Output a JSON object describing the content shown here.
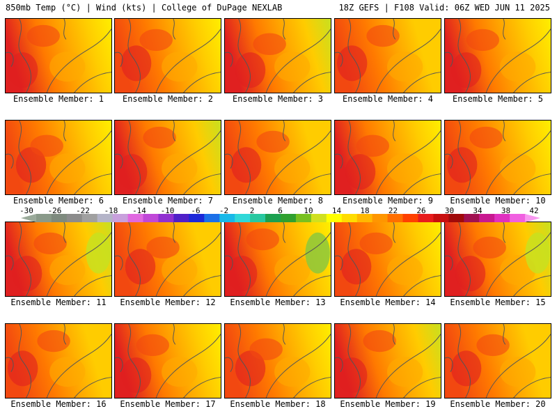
{
  "header": {
    "left": "850mb Temp (°C) | Wind (kts) | College of DuPage NEXLAB",
    "right": "18Z GEFS | F108 Valid: 06Z WED JUN 11 2025"
  },
  "label_prefix": "Ensemble Member: ",
  "members": [
    1,
    2,
    3,
    4,
    5,
    6,
    7,
    8,
    9,
    10,
    11,
    12,
    13,
    14,
    15,
    16,
    17,
    18,
    19,
    20
  ],
  "colorbar": {
    "labels": [
      "-30",
      "-26",
      "-22",
      "-18",
      "-14",
      "-10",
      "-6",
      "-2",
      "2",
      "6",
      "10",
      "14",
      "18",
      "22",
      "26",
      "30",
      "34",
      "38",
      "42"
    ],
    "colors": [
      "#9aaa9a",
      "#8a9a8a",
      "#7e8a7e",
      "#8c8c8c",
      "#a0a0a0",
      "#b4b4c8",
      "#c8a0dc",
      "#e068e0",
      "#c048d8",
      "#9030d0",
      "#5020c8",
      "#1c28d8",
      "#1c70e8",
      "#18b8e8",
      "#30d8d8",
      "#28c8a0",
      "#1ca050",
      "#30a030",
      "#78c020",
      "#d0e020",
      "#ffff00",
      "#ffdc00",
      "#ffb800",
      "#ff9600",
      "#ff6e00",
      "#ff4000",
      "#e81c1c",
      "#c80f0f",
      "#a00a0a",
      "#a01050",
      "#c81890",
      "#e030c0",
      "#f060e0",
      "#f898f0"
    ]
  },
  "map_colors": {
    "red": "#e02020",
    "orange_red": "#f24810",
    "orange": "#ff7a00",
    "amber": "#ffaa00",
    "gold": "#ffcc00",
    "yellow": "#ffee00",
    "lime": "#c8e020",
    "green": "#8cc83c",
    "contour": "#555555"
  }
}
